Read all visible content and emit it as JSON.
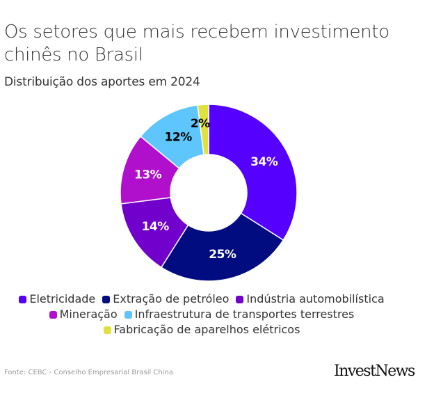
{
  "header": {
    "title": "Os setores que mais recebem investimento chinês no Brasil",
    "subtitle": "Distribuição dos aportes em 2024"
  },
  "chart_data": {
    "type": "pie",
    "variant": "donut",
    "title": "Os setores que mais recebem investimento chinês no Brasil",
    "subtitle": "Distribuição dos aportes em 2024",
    "unit": "%",
    "start": "top, clockwise",
    "legend_position": "bottom",
    "slices": [
      {
        "label": "Eletricidade",
        "value": 34,
        "display": "34%",
        "color": "#5500FF",
        "label_color": "#FFFFFF"
      },
      {
        "label": "Extração de petróleo",
        "value": 25,
        "display": "25%",
        "color": "#000C80",
        "label_color": "#FFFFFF"
      },
      {
        "label": "Indústria automobilística",
        "value": 14,
        "display": "14%",
        "color": "#7200CC",
        "label_color": "#FFFFFF"
      },
      {
        "label": "Mineração",
        "value": 13,
        "display": "13%",
        "color": "#B00FCC",
        "label_color": "#FFFFFF"
      },
      {
        "label": "Infraestrutura de transportes terrestres",
        "value": 12,
        "display": "12%",
        "color": "#5EC6FC",
        "label_color": "#000000"
      },
      {
        "label": "Fabricação de aparelhos elétricos",
        "value": 2,
        "display": "2%",
        "color": "#E0E03F",
        "label_color": "#000000"
      }
    ]
  },
  "legend": {
    "rows": [
      [
        0,
        1,
        2
      ],
      [
        3,
        4
      ],
      [
        5
      ]
    ]
  },
  "footer": {
    "source": "Fonte: CEBC - Conselho Empresarial Brasil China",
    "brand": "InvestNews"
  }
}
